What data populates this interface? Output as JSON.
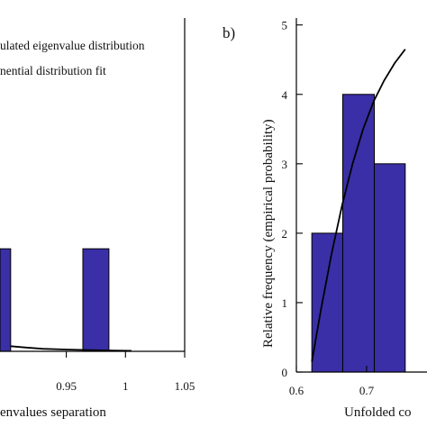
{
  "colors": {
    "bar_fill": "#3a2fa6",
    "fit_line": "#000000",
    "axis": "#000000"
  },
  "chart_data": [
    {
      "type": "bar",
      "panel": "a",
      "panel_label": "",
      "xlabel": "envalues separation",
      "ylabel": "",
      "xlim": [
        0.894,
        1.05
      ],
      "ylim": [
        0,
        1.3
      ],
      "xticks": [
        0.95,
        1,
        1.05
      ],
      "xtick_labels": [
        "0.95",
        "1",
        "1.05"
      ],
      "bars": [
        {
          "x0": 0.894,
          "x1": 0.903,
          "value": 0.4
        },
        {
          "x0": 0.964,
          "x1": 0.986,
          "value": 0.4
        }
      ],
      "fit_curve": {
        "x": [
          0.903,
          0.915,
          0.93,
          0.95,
          0.97,
          0.99,
          1.005
        ],
        "y": [
          0.02,
          0.015,
          0.01,
          0.007,
          0.005,
          0.003,
          0.002
        ]
      },
      "legend": {
        "placement": "top-left",
        "entries": [
          "ulated eigenvalue distribution",
          "nential distribution fit"
        ]
      }
    },
    {
      "type": "bar",
      "panel": "b",
      "panel_label": "b)",
      "xlabel": "Unfolded co",
      "ylabel": "Relative frequency (empirical probability)",
      "xlim": [
        0.6,
        0.786
      ],
      "ylim": [
        0,
        5.1
      ],
      "xticks": [
        0.6,
        0.7
      ],
      "xtick_labels": [
        "0.6",
        "0.7"
      ],
      "yticks": [
        0,
        1,
        2,
        3,
        4,
        5
      ],
      "ytick_labels": [
        "0",
        "1",
        "2",
        "3",
        "4",
        "5"
      ],
      "bars": [
        {
          "x0": 0.622,
          "x1": 0.666,
          "value": 2
        },
        {
          "x0": 0.666,
          "x1": 0.711,
          "value": 4
        },
        {
          "x0": 0.711,
          "x1": 0.755,
          "value": 3
        }
      ],
      "fit_curve": {
        "x": [
          0.622,
          0.635,
          0.65,
          0.665,
          0.68,
          0.695,
          0.71,
          0.725,
          0.74,
          0.755
        ],
        "y": [
          0.15,
          0.9,
          1.7,
          2.4,
          3.0,
          3.5,
          3.9,
          4.2,
          4.45,
          4.65
        ]
      }
    }
  ]
}
